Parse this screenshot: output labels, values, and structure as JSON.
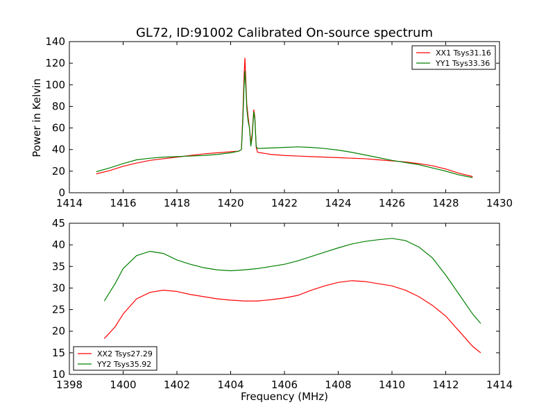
{
  "chart_data": [
    {
      "type": "line",
      "title": "GL72, ID:91002 Calibrated On-source spectrum",
      "xlabel": "",
      "ylabel": "Power in Kelvin",
      "xlim": [
        1414,
        1430
      ],
      "ylim": [
        0,
        140
      ],
      "xticks": [
        1414,
        1416,
        1418,
        1420,
        1422,
        1424,
        1426,
        1428,
        1430
      ],
      "yticks": [
        0,
        20,
        40,
        60,
        80,
        100,
        120,
        140
      ],
      "legend_position": "top-right",
      "series": [
        {
          "name": "XX1 Tsys31.16",
          "color": "#ff0000",
          "points": [
            [
              1415.0,
              17.5
            ],
            [
              1415.5,
              20.5
            ],
            [
              1416.0,
              24.5
            ],
            [
              1416.5,
              27.5
            ],
            [
              1417.0,
              30.0
            ],
            [
              1417.5,
              31.5
            ],
            [
              1418.0,
              33.0
            ],
            [
              1418.5,
              34.5
            ],
            [
              1419.0,
              36.0
            ],
            [
              1419.5,
              37.0
            ],
            [
              1420.0,
              38.0
            ],
            [
              1420.3,
              38.5
            ],
            [
              1420.4,
              40.0
            ],
            [
              1420.45,
              70.0
            ],
            [
              1420.5,
              110.0
            ],
            [
              1420.53,
              125.0
            ],
            [
              1420.57,
              100.0
            ],
            [
              1420.6,
              82.0
            ],
            [
              1420.65,
              70.0
            ],
            [
              1420.7,
              60.0
            ],
            [
              1420.75,
              45.0
            ],
            [
              1420.8,
              55.0
            ],
            [
              1420.86,
              77.0
            ],
            [
              1420.9,
              70.0
            ],
            [
              1420.95,
              42.0
            ],
            [
              1421.0,
              37.5
            ],
            [
              1421.5,
              35.5
            ],
            [
              1422.0,
              34.5
            ],
            [
              1422.5,
              34.0
            ],
            [
              1423.0,
              33.5
            ],
            [
              1423.5,
              33.0
            ],
            [
              1424.0,
              32.5
            ],
            [
              1424.5,
              32.0
            ],
            [
              1425.0,
              31.5
            ],
            [
              1425.5,
              30.5
            ],
            [
              1426.0,
              29.5
            ],
            [
              1426.5,
              28.5
            ],
            [
              1427.0,
              27.0
            ],
            [
              1427.5,
              25.0
            ],
            [
              1428.0,
              22.0
            ],
            [
              1428.5,
              18.0
            ],
            [
              1429.0,
              15.0
            ]
          ]
        },
        {
          "name": "YY1 Tsys33.36",
          "color": "#008000",
          "points": [
            [
              1415.0,
              19.5
            ],
            [
              1415.5,
              23.0
            ],
            [
              1416.0,
              27.0
            ],
            [
              1416.5,
              30.5
            ],
            [
              1417.0,
              32.0
            ],
            [
              1417.5,
              33.0
            ],
            [
              1418.0,
              33.5
            ],
            [
              1418.5,
              34.0
            ],
            [
              1419.0,
              34.5
            ],
            [
              1419.5,
              35.5
            ],
            [
              1420.0,
              37.0
            ],
            [
              1420.3,
              38.5
            ],
            [
              1420.4,
              40.0
            ],
            [
              1420.45,
              65.0
            ],
            [
              1420.5,
              100.0
            ],
            [
              1420.53,
              113.0
            ],
            [
              1420.57,
              95.0
            ],
            [
              1420.6,
              78.0
            ],
            [
              1420.65,
              66.0
            ],
            [
              1420.7,
              60.0
            ],
            [
              1420.75,
              43.0
            ],
            [
              1420.8,
              52.0
            ],
            [
              1420.86,
              75.0
            ],
            [
              1420.9,
              68.0
            ],
            [
              1420.95,
              43.0
            ],
            [
              1421.0,
              41.0
            ],
            [
              1421.5,
              41.5
            ],
            [
              1422.0,
              42.0
            ],
            [
              1422.5,
              42.5
            ],
            [
              1423.0,
              42.0
            ],
            [
              1423.5,
              41.0
            ],
            [
              1424.0,
              39.5
            ],
            [
              1424.5,
              37.5
            ],
            [
              1425.0,
              35.0
            ],
            [
              1425.5,
              32.5
            ],
            [
              1426.0,
              30.0
            ],
            [
              1426.5,
              28.0
            ],
            [
              1427.0,
              26.0
            ],
            [
              1427.5,
              23.0
            ],
            [
              1428.0,
              20.0
            ],
            [
              1428.5,
              16.5
            ],
            [
              1429.0,
              14.0
            ]
          ]
        }
      ]
    },
    {
      "type": "line",
      "title": "",
      "xlabel": "Frequency (MHz)",
      "ylabel": "",
      "xlim": [
        1398,
        1414
      ],
      "ylim": [
        10,
        45
      ],
      "xticks": [
        1398,
        1400,
        1402,
        1404,
        1406,
        1408,
        1410,
        1412,
        1414
      ],
      "yticks": [
        10,
        15,
        20,
        25,
        30,
        35,
        40,
        45
      ],
      "legend_position": "bottom-left",
      "series": [
        {
          "name": "XX2 Tsys27.29",
          "color": "#ff0000",
          "points": [
            [
              1399.3,
              18.3
            ],
            [
              1399.7,
              21.0
            ],
            [
              1400.0,
              24.0
            ],
            [
              1400.5,
              27.5
            ],
            [
              1401.0,
              29.0
            ],
            [
              1401.5,
              29.5
            ],
            [
              1402.0,
              29.2
            ],
            [
              1402.5,
              28.5
            ],
            [
              1403.0,
              28.0
            ],
            [
              1403.5,
              27.5
            ],
            [
              1404.0,
              27.2
            ],
            [
              1404.5,
              27.0
            ],
            [
              1405.0,
              27.0
            ],
            [
              1405.5,
              27.3
            ],
            [
              1406.0,
              27.7
            ],
            [
              1406.5,
              28.3
            ],
            [
              1407.0,
              29.5
            ],
            [
              1407.5,
              30.5
            ],
            [
              1408.0,
              31.3
            ],
            [
              1408.5,
              31.7
            ],
            [
              1409.0,
              31.5
            ],
            [
              1409.5,
              31.0
            ],
            [
              1410.0,
              30.5
            ],
            [
              1410.5,
              29.5
            ],
            [
              1411.0,
              28.0
            ],
            [
              1411.5,
              26.0
            ],
            [
              1412.0,
              23.5
            ],
            [
              1412.5,
              20.0
            ],
            [
              1413.0,
              16.5
            ],
            [
              1413.3,
              15.0
            ]
          ]
        },
        {
          "name": "YY2 Tsys35.92",
          "color": "#008000",
          "points": [
            [
              1399.3,
              27.0
            ],
            [
              1399.7,
              31.0
            ],
            [
              1400.0,
              34.5
            ],
            [
              1400.5,
              37.5
            ],
            [
              1401.0,
              38.5
            ],
            [
              1401.5,
              38.0
            ],
            [
              1402.0,
              36.5
            ],
            [
              1402.5,
              35.5
            ],
            [
              1403.0,
              34.7
            ],
            [
              1403.5,
              34.2
            ],
            [
              1404.0,
              34.0
            ],
            [
              1404.5,
              34.2
            ],
            [
              1405.0,
              34.5
            ],
            [
              1405.5,
              35.0
            ],
            [
              1406.0,
              35.5
            ],
            [
              1406.5,
              36.3
            ],
            [
              1407.0,
              37.3
            ],
            [
              1407.5,
              38.3
            ],
            [
              1408.0,
              39.3
            ],
            [
              1408.5,
              40.2
            ],
            [
              1409.0,
              40.8
            ],
            [
              1409.5,
              41.2
            ],
            [
              1410.0,
              41.5
            ],
            [
              1410.5,
              41.0
            ],
            [
              1411.0,
              39.5
            ],
            [
              1411.5,
              37.0
            ],
            [
              1412.0,
              33.0
            ],
            [
              1412.5,
              28.5
            ],
            [
              1413.0,
              24.0
            ],
            [
              1413.3,
              21.8
            ]
          ]
        }
      ]
    }
  ]
}
